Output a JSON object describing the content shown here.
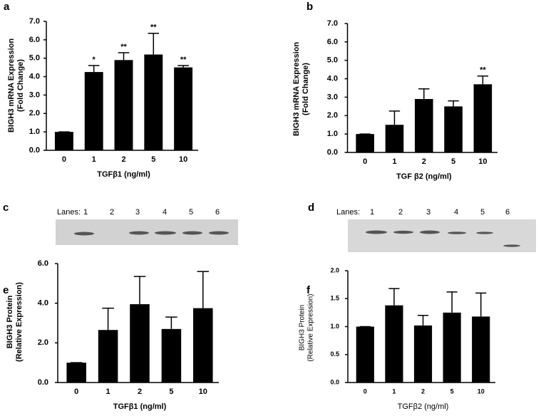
{
  "chart_data": [
    {
      "type": "bar",
      "panel": "a",
      "ylabel": [
        "BIGH3 mRNA Expression",
        "(Fold Change)"
      ],
      "xlabel": "TGFβ1 (ng/ml)",
      "categories": [
        "0",
        "1",
        "2",
        "5",
        "10"
      ],
      "values": [
        1.0,
        4.25,
        4.9,
        5.2,
        4.5
      ],
      "errors": [
        0,
        0.35,
        0.4,
        1.15,
        0.1
      ],
      "significance": [
        null,
        "*",
        "**",
        "**",
        "**"
      ],
      "color": "#000000",
      "ylim": [
        0,
        7
      ],
      "yticks": [
        {
          "value": 0,
          "label": "0.0"
        },
        {
          "value": 1,
          "label": "1.0"
        },
        {
          "value": 2,
          "label": "2.0"
        },
        {
          "value": 3,
          "label": "3.0"
        },
        {
          "value": 4,
          "label": "4.0"
        },
        {
          "value": 5,
          "label": "5.0"
        },
        {
          "value": 6,
          "label": "6.0"
        },
        {
          "value": 7,
          "label": "7.0"
        }
      ]
    },
    {
      "type": "bar",
      "panel": "b",
      "ylabel": [
        "BIGH3 mRNA Expression",
        "(Fold Change)"
      ],
      "xlabel": "TGF β2 (ng/ml)",
      "categories": [
        "0",
        "1",
        "2",
        "5",
        "10"
      ],
      "values": [
        1.0,
        1.5,
        2.9,
        2.5,
        3.7
      ],
      "errors": [
        0,
        0.75,
        0.55,
        0.3,
        0.45
      ],
      "significance": [
        null,
        null,
        null,
        null,
        "**"
      ],
      "color": "#000000",
      "ylim": [
        0,
        7
      ],
      "yticks": [
        {
          "value": 0,
          "label": "0.0"
        },
        {
          "value": 1,
          "label": "1.0"
        },
        {
          "value": 2,
          "label": "2.0"
        },
        {
          "value": 3,
          "label": "3.0"
        },
        {
          "value": 4,
          "label": "4.0"
        },
        {
          "value": 5,
          "label": "5.0"
        },
        {
          "value": 6,
          "label": "6.0"
        },
        {
          "value": 7,
          "label": "7.0"
        }
      ]
    },
    {
      "type": "bar",
      "panel": "e",
      "ylabel": [
        "BIGH3 Protein",
        "(Relative Expression)"
      ],
      "xlabel": "TGFβ1 (ng/ml)",
      "categories": [
        "0",
        "1",
        "2",
        "5",
        "10"
      ],
      "values": [
        1.0,
        2.65,
        3.95,
        2.7,
        3.75
      ],
      "errors": [
        0,
        1.1,
        1.4,
        0.6,
        1.85
      ],
      "color": "#000000",
      "ylim": [
        0,
        6
      ],
      "yticks": [
        {
          "value": 0,
          "label": "0.0"
        },
        {
          "value": 2,
          "label": "2.0"
        },
        {
          "value": 4,
          "label": "4.0"
        },
        {
          "value": 6,
          "label": "6.0"
        }
      ]
    },
    {
      "type": "bar",
      "panel": "f",
      "ylabel": [
        "BIGH3 Protein",
        "(Relative Expression)"
      ],
      "xlabel": "TGFβ2 (ng/ml)",
      "categories": [
        "0",
        "1",
        "2",
        "5",
        "10"
      ],
      "values": [
        1.0,
        1.38,
        1.02,
        1.25,
        1.18
      ],
      "errors": [
        0,
        0.3,
        0.18,
        0.37,
        0.42
      ],
      "color": "#000000",
      "ylim": [
        0,
        2
      ],
      "yticks": [
        {
          "value": 0,
          "label": "0.0"
        },
        {
          "value": 0.5,
          "label": "0.5"
        },
        {
          "value": 1,
          "label": "1.0"
        },
        {
          "value": 1.5,
          "label": "1.5"
        },
        {
          "value": 2,
          "label": "2.0"
        }
      ]
    }
  ],
  "blots": [
    {
      "panel": "c",
      "lanes_label": "Lanes:",
      "lanes": [
        "1",
        "2",
        "3",
        "4",
        "5",
        "6"
      ]
    },
    {
      "panel": "d",
      "lanes_label": "Lanes:",
      "lanes": [
        "1",
        "2",
        "3",
        "4",
        "5",
        "6"
      ]
    }
  ]
}
